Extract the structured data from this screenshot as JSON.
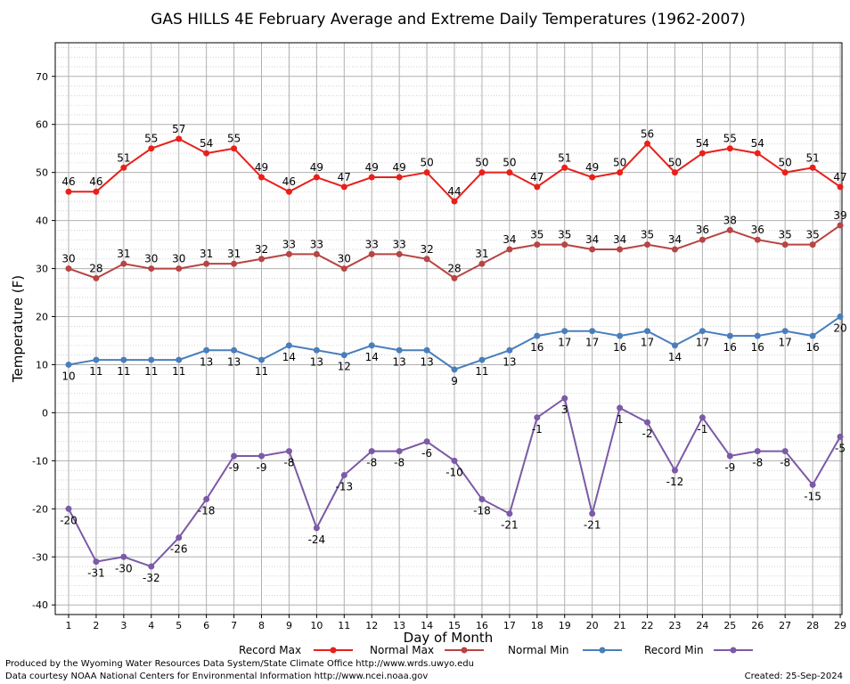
{
  "chart_data": {
    "type": "line",
    "title": "GAS HILLS 4E February Average and Extreme Daily Temperatures (1962-2007)",
    "xlabel": "Day of Month",
    "ylabel": "Temperature (F)",
    "ylim": [
      -42,
      77
    ],
    "yticks": [
      -40,
      -30,
      -20,
      -10,
      0,
      10,
      20,
      30,
      40,
      50,
      60,
      70
    ],
    "grid": true,
    "legend_position": "bottom",
    "x": [
      1,
      2,
      3,
      4,
      5,
      6,
      7,
      8,
      9,
      10,
      11,
      12,
      13,
      14,
      15,
      16,
      17,
      18,
      19,
      20,
      21,
      22,
      23,
      24,
      25,
      26,
      27,
      28,
      29
    ],
    "series": [
      {
        "name": "Record Max",
        "color": "#e8201a",
        "label_position": "above",
        "values": [
          46,
          46,
          51,
          55,
          57,
          54,
          55,
          49,
          46,
          49,
          47,
          49,
          49,
          50,
          44,
          50,
          50,
          47,
          51,
          49,
          50,
          56,
          50,
          54,
          55,
          54,
          50,
          51,
          47
        ]
      },
      {
        "name": "Normal Max",
        "color": "#b84444",
        "label_position": "above",
        "values": [
          30,
          28,
          31,
          30,
          30,
          31,
          31,
          32,
          33,
          33,
          30,
          33,
          33,
          32,
          28,
          31,
          34,
          35,
          35,
          34,
          34,
          35,
          34,
          36,
          38,
          36,
          35,
          35,
          39
        ]
      },
      {
        "name": "Normal Min",
        "color": "#4a7ebb",
        "label_position": "below",
        "values": [
          10,
          11,
          11,
          11,
          11,
          13,
          13,
          11,
          14,
          13,
          12,
          14,
          13,
          13,
          9,
          11,
          13,
          16,
          17,
          17,
          16,
          17,
          14,
          17,
          16,
          16,
          17,
          16,
          20
        ]
      },
      {
        "name": "Record Min",
        "color": "#7b5aa6",
        "label_position": "below",
        "values": [
          -20,
          -31,
          -30,
          -32,
          -26,
          -18,
          -9,
          -9,
          -8,
          -24,
          -13,
          -8,
          -8,
          -6,
          -10,
          -18,
          -21,
          -1,
          3,
          -21,
          1,
          -2,
          -12,
          -1,
          -9,
          -8,
          -8,
          -15,
          -5
        ],
        "labeled_days": [
          1,
          2,
          3,
          4,
          5,
          6,
          7,
          8,
          9,
          10,
          11,
          12,
          13,
          14,
          15,
          16,
          17,
          18,
          19,
          20,
          21,
          22,
          23,
          24,
          25,
          26,
          27,
          28,
          29
        ]
      }
    ]
  },
  "footer": {
    "credit_line1": "Produced by the Wyoming Water Resources Data System/State Climate Office http://www.wrds.uwyo.edu",
    "credit_line2": "Data courtesy NOAA National Centers for Environmental Information http://www.ncei.noaa.gov",
    "created": "Created: 25-Sep-2024"
  }
}
